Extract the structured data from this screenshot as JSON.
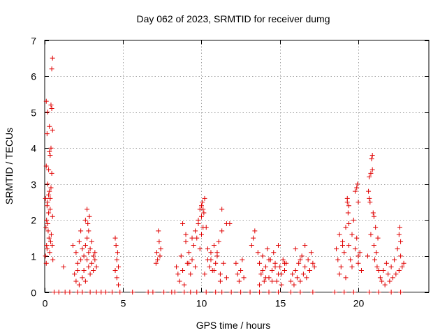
{
  "chart_data": {
    "type": "scatter",
    "title": "Day 062 of 2023, SRMTID for receiver dumg",
    "xlabel": "GPS time / hours",
    "ylabel": "SRMTID / TECUs",
    "xlim": [
      0,
      24.5
    ],
    "ylim": [
      0,
      7
    ],
    "xticks": [
      0,
      5,
      10,
      15,
      20
    ],
    "yticks": [
      0,
      1,
      2,
      3,
      4,
      5,
      6,
      7
    ],
    "xtick_labels": [
      "0",
      "5",
      "10",
      "15",
      "20"
    ],
    "ytick_labels": [
      "0",
      "1",
      "2",
      "3",
      "4",
      "5",
      "6",
      "7"
    ],
    "grid": true,
    "marker": "+",
    "color": "#e00000",
    "series": [
      {
        "name": "SRMTID",
        "x": [
          0.05,
          0.05,
          0.08,
          0.1,
          0.1,
          0.12,
          0.15,
          0.15,
          0.18,
          0.2,
          0.2,
          0.22,
          0.25,
          0.25,
          0.28,
          0.3,
          0.3,
          0.32,
          0.35,
          0.35,
          0.38,
          0.4,
          0.4,
          0.42,
          0.45,
          0.45,
          0.48,
          0.5,
          0.5,
          0.52,
          0.1,
          0.12,
          0.15,
          0.2,
          0.25,
          0.3,
          0.35,
          0.4,
          0.45,
          0.5,
          1.2,
          1.8,
          1.9,
          2.0,
          2.0,
          2.1,
          2.1,
          2.2,
          2.2,
          2.3,
          2.3,
          2.4,
          2.4,
          2.5,
          2.5,
          2.6,
          2.6,
          2.7,
          2.7,
          2.8,
          2.8,
          2.9,
          2.9,
          3.0,
          3.0,
          3.1,
          3.1,
          3.2,
          3.2,
          3.3,
          2.6,
          2.7,
          2.75,
          2.8,
          2.85,
          4.5,
          4.5,
          4.55,
          4.6,
          4.6,
          4.65,
          4.7,
          4.7,
          7.1,
          7.15,
          7.2,
          7.25,
          7.3,
          7.35,
          7.4,
          8.4,
          8.5,
          8.6,
          8.7,
          8.8,
          8.9,
          9.0,
          9.1,
          9.2,
          9.3,
          9.4,
          9.5,
          9.6,
          9.7,
          9.8,
          9.9,
          10.0,
          10.1,
          10.2,
          10.3,
          10.4,
          10.5,
          10.6,
          10.7,
          10.8,
          10.9,
          11.0,
          11.1,
          11.2,
          11.3,
          8.8,
          9.0,
          9.2,
          9.4,
          9.6,
          9.8,
          10.0,
          10.2,
          10.4,
          10.6,
          10.8,
          11.0,
          11.2,
          11.4,
          11.6,
          11.8,
          9.9,
          10.0,
          10.05,
          10.1,
          10.15,
          11.3,
          11.6,
          12.2,
          12.3,
          12.4,
          12.5,
          12.6,
          12.7,
          13.2,
          13.3,
          13.4,
          13.6,
          13.7,
          13.8,
          13.9,
          14.0,
          14.1,
          14.2,
          14.3,
          14.4,
          14.5,
          14.6,
          14.7,
          14.8,
          14.9,
          15.0,
          15.1,
          15.2,
          15.3,
          15.4,
          13.7,
          13.9,
          14.1,
          14.3,
          14.5,
          14.7,
          14.9,
          15.1,
          15.3,
          15.7,
          15.8,
          15.9,
          16.0,
          16.1,
          16.2,
          16.3,
          16.4,
          16.5,
          16.6,
          16.7,
          16.8,
          16.9,
          17.0,
          17.1,
          17.2,
          16.0,
          16.3,
          16.6,
          16.9,
          18.6,
          18.7,
          18.8,
          18.9,
          19.0,
          19.1,
          19.2,
          19.3,
          19.4,
          19.5,
          19.6,
          19.7,
          19.8,
          19.9,
          20.0,
          20.1,
          20.2,
          18.8,
          19.0,
          19.2,
          19.4,
          19.6,
          19.8,
          20.0,
          19.3,
          19.35,
          19.4,
          19.9,
          19.95,
          20.0,
          20.6,
          20.65,
          20.7,
          20.75,
          20.8,
          20.85,
          20.9,
          20.95,
          21.0,
          21.05,
          21.1,
          21.15,
          21.2,
          21.25,
          21.3,
          20.7,
          20.8,
          20.9,
          21.0,
          21.4,
          21.5,
          21.6,
          21.7,
          21.8,
          21.9,
          22.0,
          22.1,
          22.2,
          22.3,
          22.4,
          22.5,
          22.6,
          22.7,
          22.8,
          22.9,
          22.6,
          22.65,
          22.7,
          0.6,
          0.9,
          1.3,
          1.6,
          2.1,
          2.4,
          2.9,
          3.3,
          3.6,
          3.9,
          4.3,
          4.8,
          5.6,
          6.6,
          6.9,
          7.6,
          8.1,
          8.3,
          8.9,
          9.3,
          9.7,
          10.3,
          10.9,
          11.3,
          11.9,
          12.5,
          13.1,
          13.7,
          14.3,
          14.9,
          15.7,
          16.3,
          17.1,
          18.5,
          19.1,
          19.7,
          20.7,
          21.3,
          22.1,
          22.7
        ],
        "y": [
          1.0,
          2.6,
          1.8,
          3.5,
          5.3,
          2.0,
          1.2,
          4.4,
          2.5,
          5.0,
          3.0,
          1.7,
          2.2,
          3.4,
          1.5,
          4.6,
          2.8,
          1.1,
          3.8,
          2.3,
          1.4,
          5.2,
          2.9,
          1.6,
          6.2,
          3.3,
          1.3,
          6.5,
          2.1,
          0.9,
          0.8,
          1.3,
          2.4,
          1.9,
          2.7,
          3.9,
          2.6,
          4.0,
          5.1,
          4.5,
          0.7,
          1.3,
          0.5,
          0.3,
          1.1,
          0.8,
          0.6,
          1.4,
          0.2,
          1.7,
          0.9,
          1.2,
          0.4,
          1.0,
          0.6,
          1.3,
          0.3,
          0.9,
          1.5,
          0.7,
          1.1,
          0.5,
          1.2,
          0.8,
          1.4,
          1.0,
          0.6,
          1.1,
          0.9,
          0.7,
          2.0,
          2.3,
          1.9,
          1.7,
          2.1,
          1.5,
          0.6,
          1.3,
          0.9,
          0.4,
          1.1,
          0.7,
          0.2,
          0.8,
          1.1,
          0.9,
          1.7,
          1.4,
          1.0,
          1.2,
          0.7,
          0.5,
          0.3,
          1.0,
          0.6,
          0.2,
          1.4,
          0.8,
          1.1,
          0.5,
          0.9,
          1.3,
          1.7,
          1.5,
          1.9,
          1.2,
          1.6,
          2.3,
          2.6,
          1.8,
          0.9,
          0.7,
          1.1,
          0.6,
          1.3,
          0.8,
          1.0,
          1.4,
          0.5,
          1.7,
          1.9,
          1.6,
          0.8,
          1.5,
          0.7,
          2.0,
          2.4,
          0.5,
          1.2,
          0.9,
          0.6,
          1.1,
          0.3,
          0.8,
          0.4,
          1.9,
          2.3,
          2.1,
          2.5,
          1.8,
          2.2,
          2.3,
          1.9,
          0.8,
          0.5,
          0.3,
          0.6,
          0.9,
          0.4,
          1.3,
          1.5,
          1.7,
          1.1,
          0.8,
          0.5,
          1.0,
          0.3,
          0.7,
          1.2,
          0.4,
          0.9,
          0.6,
          1.1,
          0.8,
          0.3,
          1.3,
          0.7,
          0.5,
          0.9,
          0.6,
          0.8,
          0.2,
          0.6,
          0.4,
          0.9,
          0.3,
          0.7,
          0.5,
          0.2,
          0.8,
          0.3,
          0.5,
          0.2,
          0.6,
          0.4,
          0.8,
          0.3,
          1.0,
          0.5,
          0.7,
          0.4,
          0.9,
          0.6,
          1.1,
          0.8,
          0.7,
          1.2,
          0.9,
          1.3,
          0.6,
          1.2,
          0.9,
          1.6,
          0.7,
          1.4,
          1.1,
          1.8,
          2.5,
          1.3,
          0.9,
          1.6,
          2.0,
          1.2,
          1.5,
          0.8,
          1.1,
          0.6,
          0.5,
          1.3,
          0.4,
          1.9,
          0.7,
          2.8,
          1.0,
          2.6,
          2.2,
          2.4,
          2.9,
          3.0,
          2.5,
          1.0,
          2.8,
          3.2,
          2.5,
          1.6,
          3.7,
          3.4,
          2.2,
          1.3,
          0.9,
          1.8,
          1.1,
          0.7,
          1.5,
          0.6,
          2.6,
          3.3,
          3.8,
          2.1,
          0.4,
          0.3,
          0.6,
          0.2,
          0.8,
          0.5,
          0.3,
          0.7,
          0.4,
          0.9,
          0.5,
          1.2,
          0.6,
          1.0,
          0.7,
          0.8,
          1.6,
          1.8,
          1.4,
          0,
          0,
          0,
          0,
          0,
          0,
          0,
          0,
          0,
          0,
          0,
          0,
          0,
          0,
          0,
          0,
          0,
          0,
          0,
          0,
          0,
          0,
          0,
          0,
          0,
          0,
          0,
          0,
          0,
          0,
          0,
          0,
          0,
          0,
          0,
          0,
          0,
          0,
          0,
          0
        ]
      }
    ]
  }
}
